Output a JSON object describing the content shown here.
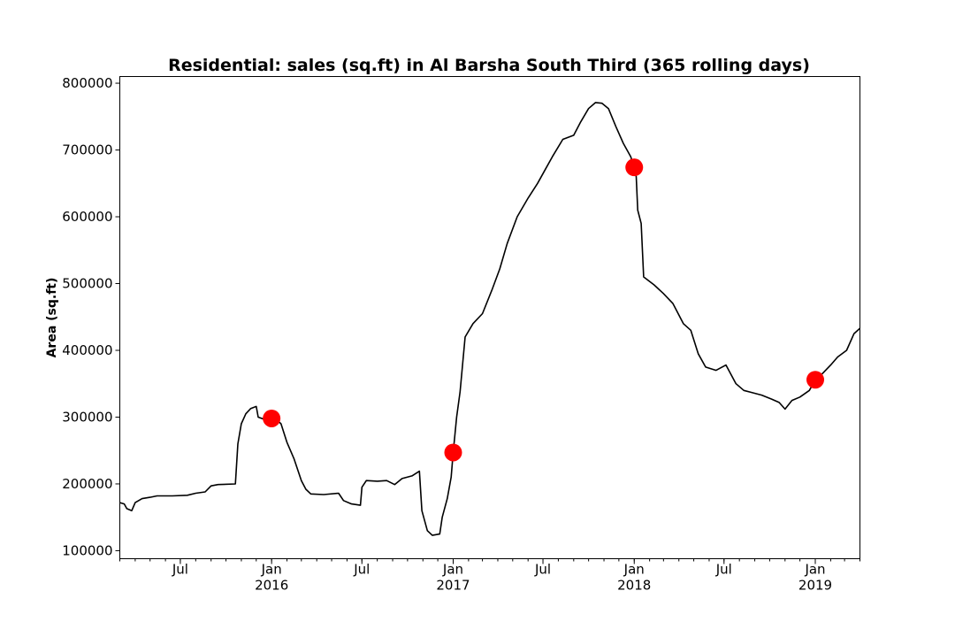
{
  "chart_data": {
    "type": "line",
    "title": "Residential: sales (sq.ft) in Al Barsha South Third (365 rolling days)",
    "xlabel": "",
    "ylabel": "Area (sq.ft)",
    "ylim": [
      88000,
      810000
    ],
    "xlim": [
      "2015-03-01",
      "2019-04-01"
    ],
    "grid": false,
    "legend": "none",
    "yticks": [
      {
        "value": 100000,
        "label": "100000"
      },
      {
        "value": 200000,
        "label": "200000"
      },
      {
        "value": 300000,
        "label": "300000"
      },
      {
        "value": 400000,
        "label": "400000"
      },
      {
        "value": 500000,
        "label": "500000"
      },
      {
        "value": 600000,
        "label": "600000"
      },
      {
        "value": 700000,
        "label": "700000"
      },
      {
        "value": 800000,
        "label": "800000"
      }
    ],
    "xticks_major": [
      {
        "date": "2015-07-01",
        "label": "Jul",
        "year": ""
      },
      {
        "date": "2016-01-01",
        "label": "Jan",
        "year": "2016"
      },
      {
        "date": "2016-07-01",
        "label": "Jul",
        "year": ""
      },
      {
        "date": "2017-01-01",
        "label": "Jan",
        "year": "2017"
      },
      {
        "date": "2017-07-01",
        "label": "Jul",
        "year": ""
      },
      {
        "date": "2018-01-01",
        "label": "Jan",
        "year": "2018"
      },
      {
        "date": "2018-07-01",
        "label": "Jul",
        "year": ""
      },
      {
        "date": "2019-01-01",
        "label": "Jan",
        "year": "2019"
      }
    ],
    "series": [
      {
        "color": "#000000",
        "points": [
          [
            "2015-03-01",
            172000
          ],
          [
            "2015-03-10",
            170000
          ],
          [
            "2015-03-15",
            163000
          ],
          [
            "2015-03-25",
            160000
          ],
          [
            "2015-04-01",
            172000
          ],
          [
            "2015-04-15",
            178000
          ],
          [
            "2015-05-01",
            180000
          ],
          [
            "2015-05-15",
            182000
          ],
          [
            "2015-06-15",
            182000
          ],
          [
            "2015-07-15",
            183000
          ],
          [
            "2015-08-01",
            186000
          ],
          [
            "2015-08-20",
            188000
          ],
          [
            "2015-09-01",
            197000
          ],
          [
            "2015-09-15",
            199000
          ],
          [
            "2015-10-20",
            200000
          ],
          [
            "2015-10-25",
            260000
          ],
          [
            "2015-11-01",
            290000
          ],
          [
            "2015-11-10",
            305000
          ],
          [
            "2015-11-20",
            313000
          ],
          [
            "2015-12-01",
            316000
          ],
          [
            "2015-12-05",
            300000
          ],
          [
            "2015-12-20",
            296000
          ],
          [
            "2016-01-01",
            298000
          ],
          [
            "2016-01-10",
            297000
          ],
          [
            "2016-01-20",
            290000
          ],
          [
            "2016-02-01",
            262000
          ],
          [
            "2016-02-15",
            238000
          ],
          [
            "2016-03-01",
            205000
          ],
          [
            "2016-03-10",
            192000
          ],
          [
            "2016-03-20",
            185000
          ],
          [
            "2016-04-15",
            184000
          ],
          [
            "2016-05-15",
            186000
          ],
          [
            "2016-05-25",
            175000
          ],
          [
            "2016-06-10",
            170000
          ],
          [
            "2016-06-28",
            168000
          ],
          [
            "2016-07-01",
            195000
          ],
          [
            "2016-07-10",
            205000
          ],
          [
            "2016-08-01",
            204000
          ],
          [
            "2016-08-20",
            205000
          ],
          [
            "2016-09-05",
            199000
          ],
          [
            "2016-09-20",
            208000
          ],
          [
            "2016-10-10",
            212000
          ],
          [
            "2016-10-25",
            219000
          ],
          [
            "2016-10-30",
            160000
          ],
          [
            "2016-11-10",
            130000
          ],
          [
            "2016-11-20",
            123000
          ],
          [
            "2016-12-05",
            125000
          ],
          [
            "2016-12-10",
            150000
          ],
          [
            "2016-12-20",
            178000
          ],
          [
            "2016-12-28",
            210000
          ],
          [
            "2017-01-01",
            247000
          ],
          [
            "2017-01-08",
            300000
          ],
          [
            "2017-01-15",
            338000
          ],
          [
            "2017-01-25",
            420000
          ],
          [
            "2017-02-10",
            440000
          ],
          [
            "2017-03-01",
            455000
          ],
          [
            "2017-03-20",
            490000
          ],
          [
            "2017-04-05",
            522000
          ],
          [
            "2017-04-20",
            560000
          ],
          [
            "2017-05-10",
            600000
          ],
          [
            "2017-06-01",
            628000
          ],
          [
            "2017-06-20",
            650000
          ],
          [
            "2017-07-05",
            670000
          ],
          [
            "2017-07-20",
            690000
          ],
          [
            "2017-08-10",
            716000
          ],
          [
            "2017-09-01",
            722000
          ],
          [
            "2017-09-15",
            742000
          ],
          [
            "2017-10-01",
            762000
          ],
          [
            "2017-10-15",
            771000
          ],
          [
            "2017-10-28",
            770000
          ],
          [
            "2017-11-10",
            762000
          ],
          [
            "2017-11-25",
            735000
          ],
          [
            "2017-12-10",
            710000
          ],
          [
            "2017-12-25",
            690000
          ],
          [
            "2018-01-01",
            674000
          ],
          [
            "2018-01-05",
            660000
          ],
          [
            "2018-01-08",
            610000
          ],
          [
            "2018-01-15",
            590000
          ],
          [
            "2018-01-20",
            510000
          ],
          [
            "2018-02-10",
            498000
          ],
          [
            "2018-03-01",
            485000
          ],
          [
            "2018-03-20",
            470000
          ],
          [
            "2018-04-10",
            440000
          ],
          [
            "2018-04-25",
            430000
          ],
          [
            "2018-05-10",
            395000
          ],
          [
            "2018-05-25",
            375000
          ],
          [
            "2018-06-15",
            370000
          ],
          [
            "2018-07-05",
            378000
          ],
          [
            "2018-07-25",
            350000
          ],
          [
            "2018-08-10",
            340000
          ],
          [
            "2018-08-25",
            337000
          ],
          [
            "2018-09-15",
            333000
          ],
          [
            "2018-10-05",
            327000
          ],
          [
            "2018-10-20",
            322000
          ],
          [
            "2018-11-01",
            312000
          ],
          [
            "2018-11-15",
            325000
          ],
          [
            "2018-12-01",
            330000
          ],
          [
            "2018-12-20",
            340000
          ],
          [
            "2019-01-01",
            356000
          ],
          [
            "2019-01-15",
            365000
          ],
          [
            "2019-02-01",
            378000
          ],
          [
            "2019-02-15",
            390000
          ],
          [
            "2019-03-05",
            400000
          ],
          [
            "2019-03-20",
            425000
          ],
          [
            "2019-04-01",
            433000
          ]
        ]
      }
    ],
    "markers": {
      "color": "#ff0000",
      "points": [
        [
          "2016-01-01",
          298000
        ],
        [
          "2017-01-01",
          247000
        ],
        [
          "2018-01-01",
          674000
        ],
        [
          "2019-01-01",
          356000
        ]
      ]
    }
  }
}
